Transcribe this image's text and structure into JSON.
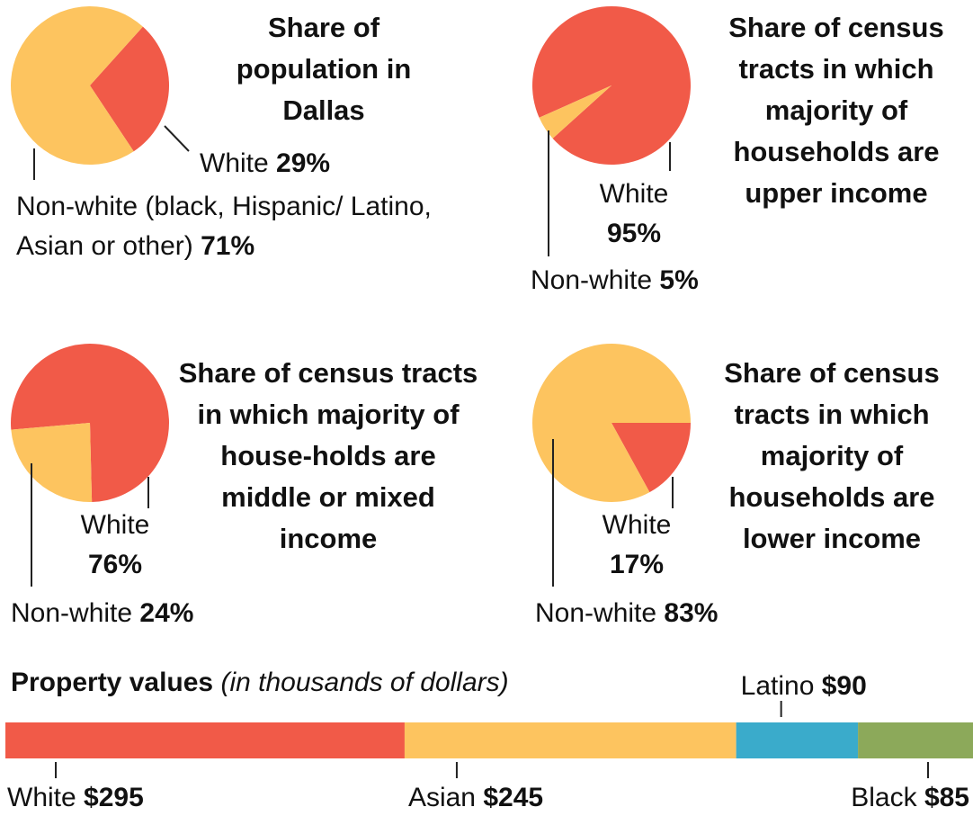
{
  "chart_data": [
    {
      "type": "pie",
      "title": "Share of population in Dallas",
      "categories": [
        "White",
        "Non-white (black, Hispanic/ Latino, Asian or other)"
      ],
      "values": [
        29,
        71
      ],
      "value_labels": [
        "29%",
        "71%"
      ],
      "colors": [
        "#f15a48",
        "#fdc45f"
      ]
    },
    {
      "type": "pie",
      "title": "Share of census tracts in which majority of households are upper income",
      "categories": [
        "White",
        "Non-white"
      ],
      "values": [
        95,
        5
      ],
      "value_labels": [
        "95%",
        "5%"
      ],
      "colors": [
        "#f15a48",
        "#fdc45f"
      ]
    },
    {
      "type": "pie",
      "title": "Share of census tracts in which majority of house-holds are middle or mixed income",
      "categories": [
        "White",
        "Non-white"
      ],
      "values": [
        76,
        24
      ],
      "value_labels": [
        "76%",
        "24%"
      ],
      "colors": [
        "#f15a48",
        "#fdc45f"
      ]
    },
    {
      "type": "pie",
      "title": "Share of census tracts in which majority of households are lower income",
      "categories": [
        "White",
        "Non-white"
      ],
      "values": [
        17,
        83
      ],
      "value_labels": [
        "17%",
        "83%"
      ],
      "colors": [
        "#f15a48",
        "#fdc45f"
      ]
    },
    {
      "type": "stacked_bar",
      "title": "Property values",
      "subtitle": "(in thousands of dollars)",
      "categories": [
        "White",
        "Asian",
        "Latino",
        "Black"
      ],
      "values": [
        295,
        245,
        90,
        85
      ],
      "value_labels": [
        "$295",
        "$245",
        "$90",
        "$85"
      ],
      "colors": [
        "#f15a48",
        "#fdc45f",
        "#3aabcb",
        "#8ca95a"
      ]
    }
  ]
}
